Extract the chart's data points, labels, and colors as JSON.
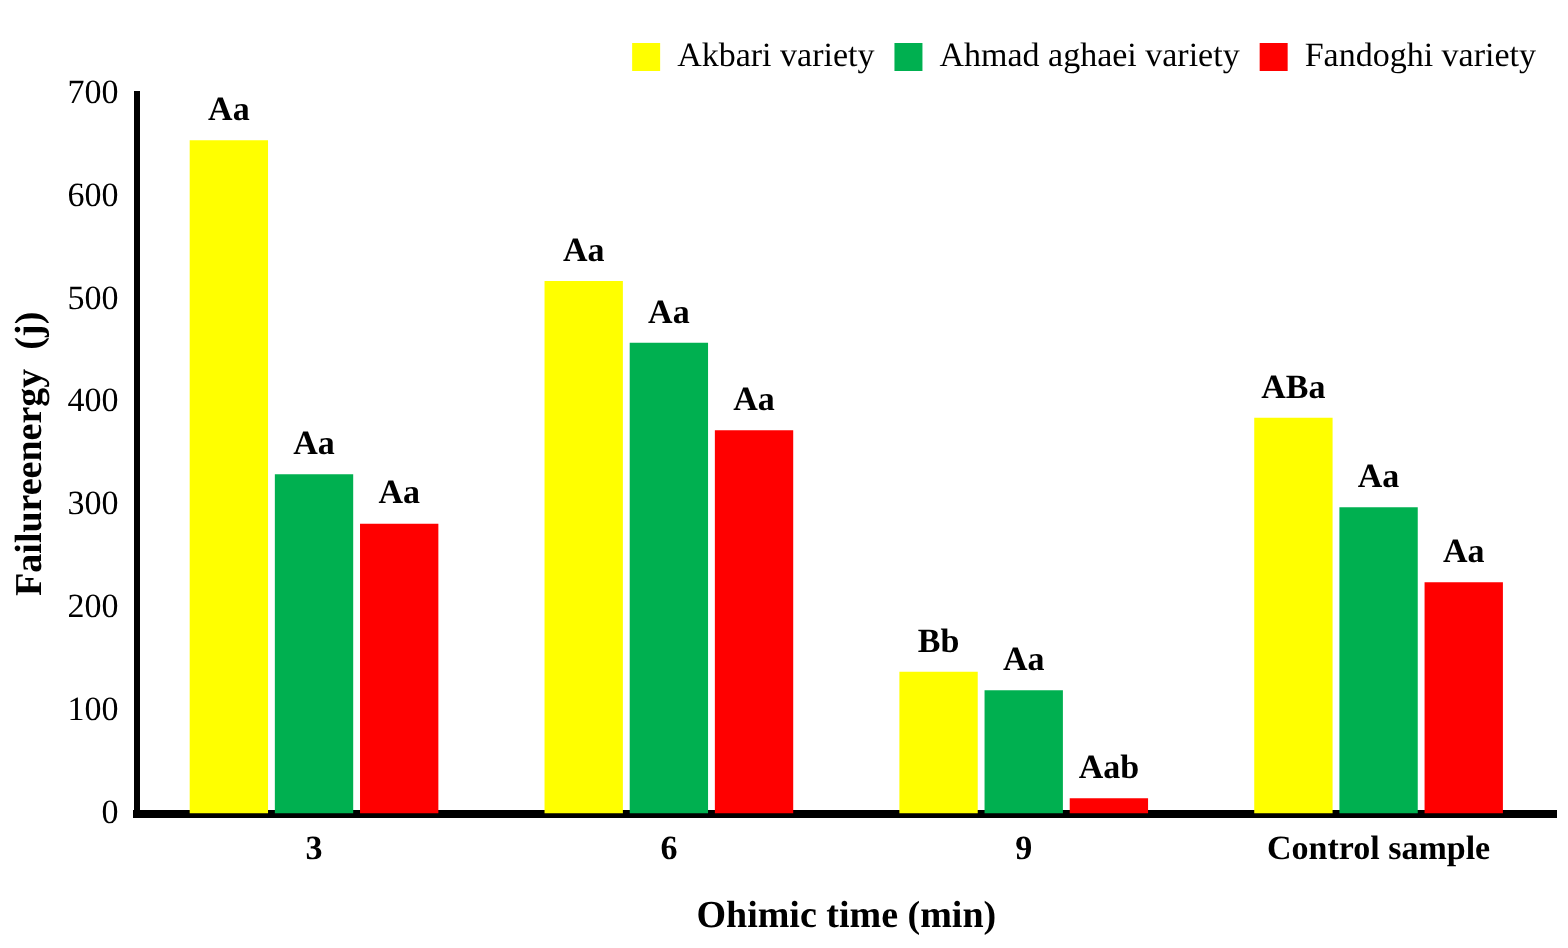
{
  "chart_data": {
    "type": "bar",
    "xlabel": "Ohimic time (min)",
    "ylabel": "Failureenergy  (j)",
    "categories": [
      "3",
      "6",
      "9",
      "Control sample"
    ],
    "series": [
      {
        "name": "Akbari variety",
        "color": "#ffff00",
        "values": [
          655,
          518,
          138,
          385
        ],
        "value_labels": [
          "Aa",
          "Aa",
          "Bb",
          "ABa"
        ]
      },
      {
        "name": "Ahmad aghaei variety",
        "color": "#00b050",
        "values": [
          330,
          458,
          120,
          298
        ],
        "value_labels": [
          "Aa",
          "Aa",
          "Aa",
          "Aa"
        ]
      },
      {
        "name": "Fandoghi variety",
        "color": "#ff0000",
        "values": [
          282,
          373,
          15,
          225
        ],
        "value_labels": [
          "Aa",
          "Aa",
          "Aab",
          "Aa"
        ]
      }
    ],
    "ylim": [
      0,
      700
    ],
    "yticks": [
      0,
      100,
      200,
      300,
      400,
      500,
      600,
      700
    ],
    "grid": false,
    "legend": "top right"
  }
}
